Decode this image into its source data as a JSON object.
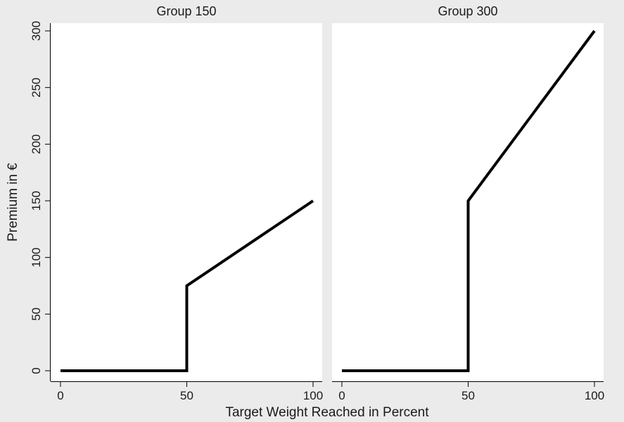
{
  "figure": {
    "xlabel": "Target Weight Reached in Percent",
    "ylabel": "Premium in €"
  },
  "chart_data": [
    {
      "type": "line",
      "title": "Group 150",
      "xlim": [
        0,
        100
      ],
      "ylim": [
        0,
        300
      ],
      "x_ticks": [
        0,
        50,
        100
      ],
      "y_ticks": [
        0,
        50,
        100,
        150,
        200,
        250,
        300
      ],
      "series": [
        {
          "x": [
            0,
            50,
            50,
            100
          ],
          "y": [
            0,
            0,
            75,
            150
          ]
        }
      ],
      "grid": false,
      "line_color": "#000000"
    },
    {
      "type": "line",
      "title": "Group 300",
      "xlim": [
        0,
        100
      ],
      "ylim": [
        0,
        300
      ],
      "x_ticks": [
        0,
        50,
        100
      ],
      "y_ticks": [
        0,
        50,
        100,
        150,
        200,
        250,
        300
      ],
      "series": [
        {
          "x": [
            0,
            50,
            50,
            100
          ],
          "y": [
            0,
            0,
            150,
            300
          ]
        }
      ],
      "grid": false,
      "line_color": "#000000"
    }
  ],
  "colors": {
    "background": "#ebebeb",
    "plot_area": "#ffffff",
    "line": "#000000"
  }
}
